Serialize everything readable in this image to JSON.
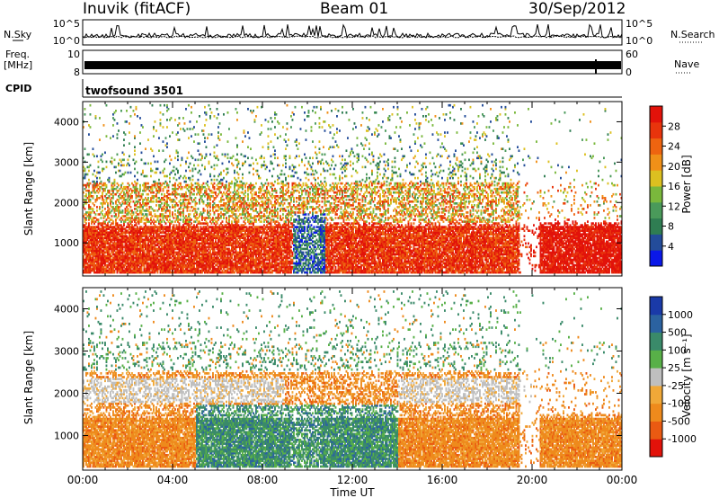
{
  "header": {
    "station": "Inuvik (fitACF)",
    "beam": "Beam 01",
    "date": "30/Sep/2012"
  },
  "strips": {
    "nsky_label": "N.Sky",
    "nsky_ticks": [
      "10^5",
      "10^0"
    ],
    "nsearch_label": "N.Search",
    "nsearch_ticks": [
      "10^5",
      "10^0"
    ],
    "freq_label": "Freq.",
    "freq_unit": "[MHz]",
    "freq_ticks": [
      "10",
      "8"
    ],
    "nave_label": "Nave",
    "nave_ticks": [
      "60",
      "0"
    ],
    "cpid_label": "CPID",
    "cpid_text": "twofsound 3501"
  },
  "chart_data": [
    {
      "type": "heatmap",
      "title": "",
      "xlabel": "Time UT",
      "ylabel": "Slant Range [km]",
      "x_range_hours": [
        0,
        24
      ],
      "x_ticks": [
        "00:00",
        "04:00",
        "08:00",
        "12:00",
        "16:00",
        "20:00",
        "00:00"
      ],
      "y_range_km": [
        180,
        4500
      ],
      "y_ticks": [
        1000,
        2000,
        3000,
        4000
      ],
      "colorbar": {
        "label": "Power [dB]",
        "min": 0,
        "max": 32,
        "tick_labels": [
          "4",
          "8",
          "12",
          "16",
          "20",
          "24",
          "28"
        ],
        "colors": [
          "#0a18e8",
          "#234c9a",
          "#2f7d52",
          "#4a9a5a",
          "#7ab83c",
          "#dcc020",
          "#f09018",
          "#ee6410",
          "#e8340c",
          "#e2120a"
        ]
      }
    },
    {
      "type": "heatmap",
      "title": "",
      "xlabel": "Time UT",
      "ylabel": "Slant Range [km]",
      "x_range_hours": [
        0,
        24
      ],
      "x_ticks": [
        "00:00",
        "04:00",
        "08:00",
        "12:00",
        "16:00",
        "20:00",
        "00:00"
      ],
      "y_range_km": [
        180,
        4500
      ],
      "y_ticks": [
        1000,
        2000,
        3000,
        4000
      ],
      "colorbar": {
        "label": "Velocity [m s⁻¹]",
        "tick_labels": [
          "1000",
          "500",
          "100",
          "25",
          "-25",
          "-100",
          "-500",
          "-1000"
        ],
        "colors": [
          "#1a3aa8",
          "#2b62a0",
          "#3a8a6a",
          "#58b048",
          "#bfbfbf",
          "#f0a838",
          "#ee8a1c",
          "#ea5a12",
          "#e2120a"
        ]
      }
    }
  ]
}
